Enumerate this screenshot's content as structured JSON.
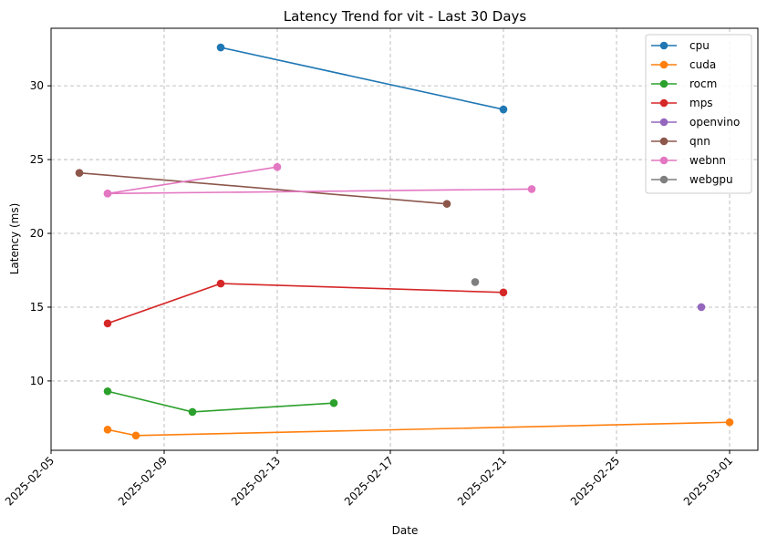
{
  "chart_data": {
    "type": "line",
    "title": "Latency Trend for vit - Last 30 Days",
    "xlabel": "Date",
    "ylabel": "Latency (ms)",
    "x_ticks": [
      "2025-02-05",
      "2025-02-09",
      "2025-02-13",
      "2025-02-17",
      "2025-02-21",
      "2025-02-25",
      "2025-03-01"
    ],
    "y_ticks": [
      10,
      15,
      20,
      25,
      30
    ],
    "xlim": [
      "2025-02-05",
      "2025-03-02"
    ],
    "ylim": [
      5.3,
      33.9
    ],
    "grid": true,
    "legend_position": "top-right",
    "series": [
      {
        "name": "cpu",
        "color": "#1f77b4",
        "points": [
          {
            "x": "2025-02-11",
            "y": 32.6
          },
          {
            "x": "2025-02-21",
            "y": 28.4
          }
        ]
      },
      {
        "name": "cuda",
        "color": "#ff7f0e",
        "points": [
          {
            "x": "2025-02-07",
            "y": 6.7
          },
          {
            "x": "2025-02-08",
            "y": 6.3
          },
          {
            "x": "2025-03-01",
            "y": 7.2
          }
        ]
      },
      {
        "name": "rocm",
        "color": "#2ca02c",
        "points": [
          {
            "x": "2025-02-07",
            "y": 9.3
          },
          {
            "x": "2025-02-10",
            "y": 7.9
          },
          {
            "x": "2025-02-15",
            "y": 8.5
          }
        ]
      },
      {
        "name": "mps",
        "color": "#d62728",
        "points": [
          {
            "x": "2025-02-07",
            "y": 13.9
          },
          {
            "x": "2025-02-11",
            "y": 16.6
          },
          {
            "x": "2025-02-21",
            "y": 16.0
          }
        ]
      },
      {
        "name": "openvino",
        "color": "#9467bd",
        "points": [
          {
            "x": "2025-02-28",
            "y": 15.0
          }
        ]
      },
      {
        "name": "qnn",
        "color": "#8c564b",
        "points": [
          {
            "x": "2025-02-06",
            "y": 24.1
          },
          {
            "x": "2025-02-19",
            "y": 22.0
          }
        ]
      },
      {
        "name": "webnn",
        "color": "#e377c2",
        "points": [
          {
            "x": "2025-02-07",
            "y": 22.7
          },
          {
            "x": "2025-02-13",
            "y": 24.5
          },
          {
            "x": "2025-02-07",
            "y": 22.7
          },
          {
            "x": "2025-02-22",
            "y": 23.0
          }
        ]
      },
      {
        "name": "webgpu",
        "color": "#7f7f7f",
        "points": [
          {
            "x": "2025-02-20",
            "y": 16.7
          }
        ]
      }
    ]
  }
}
